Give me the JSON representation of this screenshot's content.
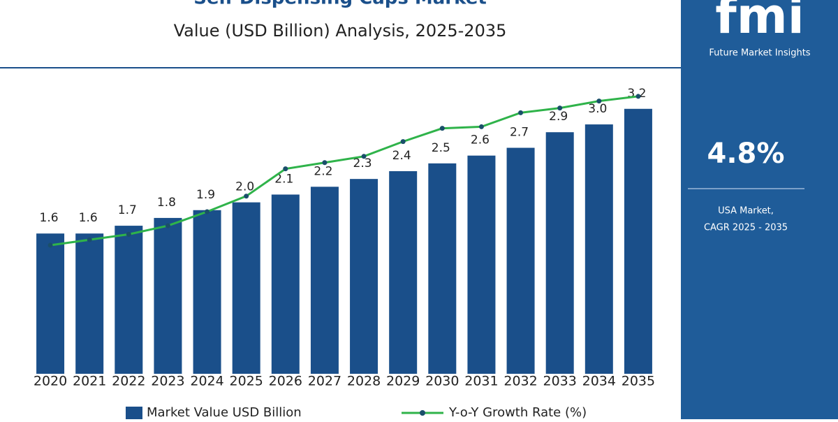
{
  "chart_data": {
    "type": "bar",
    "title": "Self Dispensing Caps Market",
    "subtitle": "Value (USD Billion) Analysis, 2025-2035",
    "categories": [
      "2020",
      "2021",
      "2022",
      "2023",
      "2024",
      "2025",
      "2026",
      "2027",
      "2028",
      "2029",
      "2030",
      "2031",
      "2032",
      "2033",
      "2034",
      "2035"
    ],
    "series": [
      {
        "name": "Market Value USD Billion",
        "color": "#1a4f8a",
        "values": [
          1.6,
          1.6,
          1.7,
          1.8,
          1.9,
          2.0,
          2.1,
          2.2,
          2.3,
          2.4,
          2.5,
          2.6,
          2.7,
          2.9,
          3.0,
          3.2
        ],
        "value_labels": [
          "1.6",
          "1.6",
          "1.7",
          "1.8",
          "1.9",
          "2.0",
          "2.1",
          "2.2",
          "2.3",
          "2.4",
          "2.5",
          "2.6",
          "2.7",
          "2.9",
          "3.0",
          "3.2"
        ]
      },
      {
        "name": "Y-o-Y Growth Rate (%)",
        "color": "#2fb34a",
        "type": "line",
        "values": [
          1.45,
          1.52,
          1.59,
          1.7,
          1.88,
          2.08,
          2.43,
          2.51,
          2.59,
          2.78,
          2.95,
          2.97,
          3.15,
          3.21,
          3.3,
          3.36
        ]
      }
    ],
    "ylim": [
      -0.2,
      3.7
    ]
  },
  "panel": {
    "logo": "fmi",
    "brand": "Future Market Insights",
    "cagr": "4.8%",
    "market": "USA Market,",
    "period": "CAGR 2025 - 2035"
  }
}
